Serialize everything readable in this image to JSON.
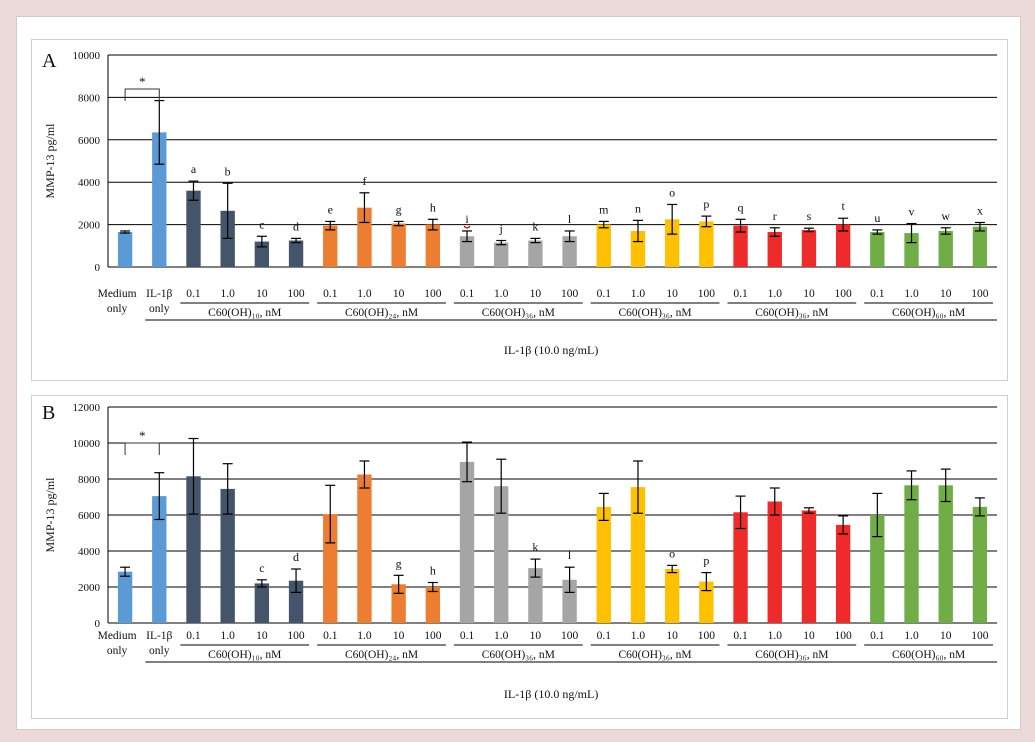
{
  "chart_data": [
    {
      "type": "bar",
      "panel_label": "A",
      "ylabel": "MMP-13  pg/ml",
      "xlabel": "IL-1β  (10.0 ng/mL)",
      "ylim": [
        0,
        10000
      ],
      "yticks": [
        0,
        2000,
        4000,
        6000,
        8000,
        10000
      ],
      "grid": true,
      "significance": "*",
      "values": [
        1650,
        6350,
        3600,
        2650,
        1200,
        1250,
        1950,
        2800,
        2050,
        2000,
        1450,
        1150,
        1250,
        1450,
        2000,
        1700,
        2250,
        2150,
        1950,
        1650,
        1750,
        2000,
        1650,
        1600,
        1700,
        1900
      ],
      "errors": [
        50,
        1500,
        450,
        1300,
        250,
        100,
        200,
        700,
        100,
        250,
        250,
        100,
        100,
        250,
        150,
        500,
        700,
        250,
        300,
        200,
        80,
        300,
        100,
        450,
        150,
        200
      ],
      "letters": [
        "",
        "",
        "a",
        "b",
        "c",
        "d",
        "e",
        "f",
        "g",
        "h",
        "i",
        "j",
        "k",
        "l",
        "m",
        "n",
        "o",
        "p",
        "q",
        "r",
        "s",
        "t",
        "u",
        "v",
        "w",
        "x"
      ]
    },
    {
      "type": "bar",
      "panel_label": "B",
      "ylabel": "MMP-13  pg/ml",
      "xlabel": "IL-1β  (10.0 ng/mL)",
      "ylim": [
        0,
        12000
      ],
      "yticks": [
        0,
        2000,
        4000,
        6000,
        8000,
        10000,
        12000
      ],
      "grid": true,
      "significance": "*",
      "values": [
        2850,
        7050,
        8150,
        7450,
        2200,
        2350,
        6050,
        8250,
        2150,
        2000,
        8950,
        7600,
        3050,
        2400,
        6450,
        7550,
        3000,
        2300,
        6150,
        6750,
        6250,
        5450,
        6000,
        7650,
        7650,
        6450
      ],
      "errors": [
        250,
        1300,
        2100,
        1400,
        200,
        650,
        1600,
        750,
        500,
        250,
        1100,
        1500,
        500,
        700,
        750,
        1450,
        200,
        500,
        900,
        750,
        150,
        500,
        1200,
        800,
        900,
        500
      ],
      "letters": [
        "",
        "",
        "",
        "",
        "c",
        "d",
        "",
        "",
        "g",
        "h",
        "",
        "",
        "k",
        "l",
        "",
        "",
        "o",
        "p",
        "",
        "",
        "",
        "",
        "",
        "",
        "",
        ""
      ]
    }
  ],
  "x_axis": {
    "control_labels": [
      [
        "Medium",
        "only"
      ],
      [
        "IL-1β",
        "only"
      ]
    ],
    "doses": [
      "0.1",
      "1.0",
      "10",
      "100"
    ],
    "groups": [
      "C60(OH)₁₀, nM",
      "C60(OH)₂₄, nM",
      "C60(OH)₃₆, nM",
      "C60(OH)₃₆, nM",
      "C60(OH)₃₆, nM",
      "C60(OH)₆₀, nM"
    ]
  },
  "colors": {
    "controls": "#5b9bd5",
    "groups": [
      "#44546a",
      "#ed7d31",
      "#a5a5a5",
      "#ffc000",
      "#ee2a2a",
      "#70ad47"
    ],
    "letter_i": "#c00000"
  }
}
